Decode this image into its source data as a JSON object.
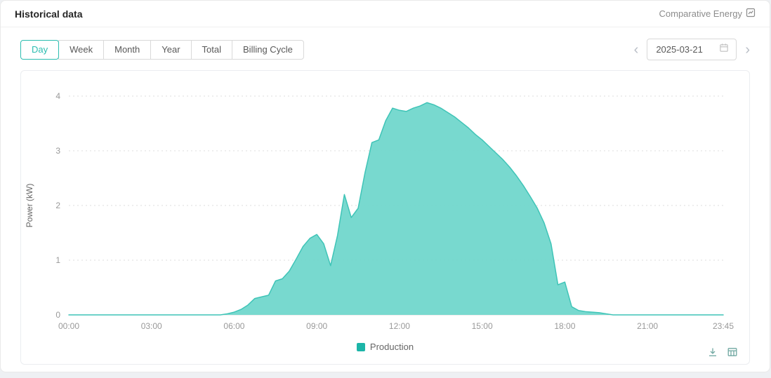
{
  "header": {
    "title": "Historical data",
    "comparative_label": "Comparative Energy"
  },
  "tabs": [
    {
      "label": "Day",
      "active": true
    },
    {
      "label": "Week",
      "active": false
    },
    {
      "label": "Month",
      "active": false
    },
    {
      "label": "Year",
      "active": false
    },
    {
      "label": "Total",
      "active": false
    },
    {
      "label": "Billing Cycle",
      "active": false
    }
  ],
  "date_picker": {
    "value": "2025-03-21"
  },
  "icons": {
    "prev": "‹",
    "next": "›"
  },
  "legend": {
    "label": "Production"
  },
  "colors": {
    "accent": "#2cbdb0",
    "area_fill": "#73d7cd",
    "line": "#3fc4b7",
    "legend_swatch": "#1cb5a8",
    "grid": "#dcdcdc",
    "tick_text": "#999999",
    "tool_icon": "#6fa7a1"
  },
  "chart_data": {
    "type": "area",
    "title": "",
    "xlabel": "",
    "ylabel": "Power (kW)",
    "ylim": [
      0,
      4
    ],
    "yticks": [
      0,
      1,
      2,
      3,
      4
    ],
    "xticks": [
      "00:00",
      "03:00",
      "06:00",
      "09:00",
      "12:00",
      "15:00",
      "18:00",
      "21:00",
      "23:45"
    ],
    "grid": "horizontal-dotted",
    "legend_position": "bottom",
    "x": [
      "00:00",
      "00:15",
      "00:30",
      "00:45",
      "01:00",
      "01:15",
      "01:30",
      "01:45",
      "02:00",
      "02:15",
      "02:30",
      "02:45",
      "03:00",
      "03:15",
      "03:30",
      "03:45",
      "04:00",
      "04:15",
      "04:30",
      "04:45",
      "05:00",
      "05:15",
      "05:30",
      "05:45",
      "06:00",
      "06:15",
      "06:30",
      "06:45",
      "07:00",
      "07:15",
      "07:30",
      "07:45",
      "08:00",
      "08:15",
      "08:30",
      "08:45",
      "09:00",
      "09:15",
      "09:30",
      "09:45",
      "10:00",
      "10:15",
      "10:30",
      "10:45",
      "11:00",
      "11:15",
      "11:30",
      "11:45",
      "12:00",
      "12:15",
      "12:30",
      "12:45",
      "13:00",
      "13:15",
      "13:30",
      "13:45",
      "14:00",
      "14:15",
      "14:30",
      "14:45",
      "15:00",
      "15:15",
      "15:30",
      "15:45",
      "16:00",
      "16:15",
      "16:30",
      "16:45",
      "17:00",
      "17:15",
      "17:30",
      "17:45",
      "18:00",
      "18:15",
      "18:30",
      "18:45",
      "19:00",
      "19:15",
      "19:30",
      "19:45",
      "20:00",
      "20:15",
      "20:30",
      "20:45",
      "21:00",
      "21:15",
      "21:30",
      "21:45",
      "22:00",
      "22:15",
      "22:30",
      "22:45",
      "23:00",
      "23:15",
      "23:30",
      "23:45"
    ],
    "series": [
      {
        "name": "Production",
        "values": [
          0,
          0,
          0,
          0,
          0,
          0,
          0,
          0,
          0,
          0,
          0,
          0,
          0,
          0,
          0,
          0,
          0,
          0,
          0,
          0,
          0,
          0,
          0,
          0.02,
          0.05,
          0.1,
          0.18,
          0.3,
          0.33,
          0.36,
          0.62,
          0.66,
          0.8,
          1.02,
          1.25,
          1.4,
          1.47,
          1.3,
          0.9,
          1.45,
          2.2,
          1.78,
          1.95,
          2.6,
          3.15,
          3.2,
          3.55,
          3.78,
          3.74,
          3.72,
          3.78,
          3.82,
          3.88,
          3.84,
          3.78,
          3.7,
          3.62,
          3.52,
          3.42,
          3.3,
          3.2,
          3.08,
          2.96,
          2.84,
          2.7,
          2.54,
          2.36,
          2.16,
          1.95,
          1.68,
          1.3,
          0.55,
          0.6,
          0.15,
          0.08,
          0.06,
          0.05,
          0.04,
          0.02,
          0,
          0,
          0,
          0,
          0,
          0,
          0,
          0,
          0,
          0,
          0,
          0,
          0,
          0,
          0,
          0,
          0
        ]
      }
    ]
  }
}
